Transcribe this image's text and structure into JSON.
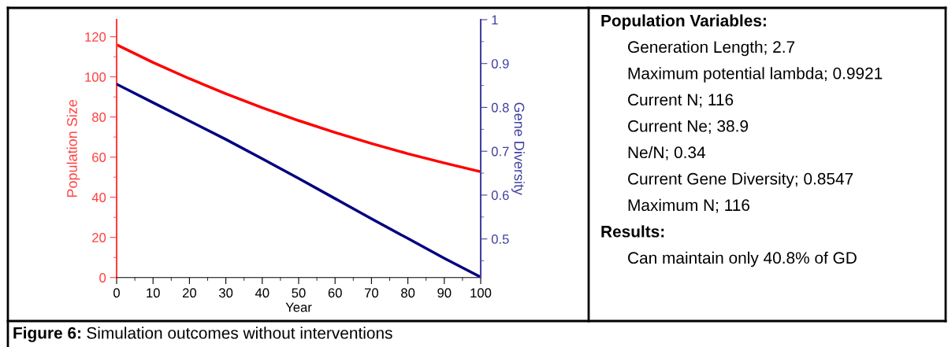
{
  "chart_data": [
    {
      "type": "line",
      "title": "Figure 6:",
      "subtitle": "Simulation outcomes without interventions",
      "xlabel": "Year",
      "ylabel": "Population Size",
      "y2label": "Gene Diversity",
      "x": [
        0,
        10,
        20,
        30,
        40,
        50,
        60,
        70,
        80,
        90,
        100
      ],
      "series": [
        {
          "color": "#ff0000",
          "values": [
            116,
            107.2,
            99.1,
            91.6,
            84.6,
            78.2,
            72.3,
            66.8,
            61.7,
            57.1,
            52.7
          ]
        },
        {
          "color": "#000080",
          "axis": "y2",
          "values": [
            0.853,
            0.811,
            0.769,
            0.727,
            0.683,
            0.638,
            0.592,
            0.546,
            0.501,
            0.456,
            0.413
          ]
        }
      ],
      "xlim": [
        0,
        100
      ],
      "xticks": [
        0,
        10,
        20,
        30,
        40,
        50,
        60,
        70,
        80,
        90,
        100
      ],
      "ylim": [
        0,
        128.5
      ],
      "yticks": [
        0,
        20,
        40,
        60,
        80,
        100,
        120
      ],
      "y2lim": [
        0.412,
        1
      ],
      "y2ticks": [
        0.5,
        0.6,
        0.7,
        0.8,
        0.9,
        1
      ],
      "grid": false,
      "legend": false,
      "marker": "none",
      "line_style": "solid"
    },
    {
      "type": "other",
      "title": "Population Variables:",
      "annotations": [
        "Generation Length; 2.7",
        "Maximum potential lambda; 0.9921",
        "Current N; 116",
        "Current Ne; 38.9",
        "Ne/N; 0.34",
        "Current Gene Diversity; 0.8547",
        "Maximum N; 116"
      ]
    },
    {
      "type": "other",
      "title": "Results:",
      "annotations": [
        "Can maintain only 40.8% of GD"
      ]
    }
  ]
}
